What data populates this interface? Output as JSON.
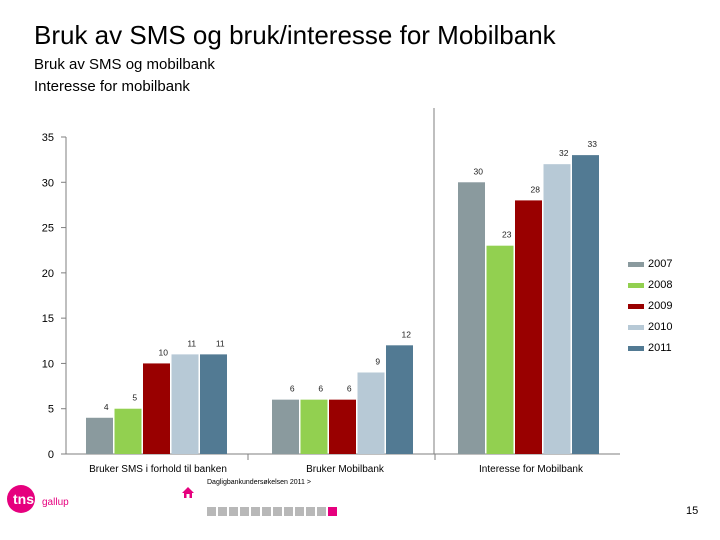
{
  "title": "Bruk av SMS og bruk/interesse for Mobilbank",
  "subtitles": [
    "Bruk av SMS og mobilbank",
    "Interesse for mobilbank"
  ],
  "footer": {
    "source": "Dagligbankundersøkelsen 2011 >",
    "page_number": "15",
    "logo_text": "tns",
    "logo_subtext": "gallup",
    "progress": {
      "total": 12,
      "active_index": 11
    }
  },
  "colors": {
    "2007": "#8a9a9e",
    "2008": "#92d050",
    "2009": "#990000",
    "2010": "#b7c9d6",
    "2011": "#527a93",
    "brand": "#e6007e"
  },
  "chart_data": {
    "type": "bar",
    "categories": [
      "Bruker SMS i forhold til banken",
      "Bruker Mobilbank",
      "Interesse for Mobilbank"
    ],
    "series": [
      {
        "name": "2007",
        "values": [
          4,
          6,
          30
        ]
      },
      {
        "name": "2008",
        "values": [
          5,
          6,
          23
        ]
      },
      {
        "name": "2009",
        "values": [
          10,
          6,
          28
        ]
      },
      {
        "name": "2010",
        "values": [
          11,
          9,
          32
        ]
      },
      {
        "name": "2011",
        "values": [
          11,
          12,
          33
        ]
      }
    ],
    "yticks": [
      "0",
      "5",
      "10",
      "15",
      "20",
      "25",
      "30",
      "35"
    ],
    "ylim": [
      0,
      35
    ],
    "legend_position": "right",
    "grid": false
  }
}
